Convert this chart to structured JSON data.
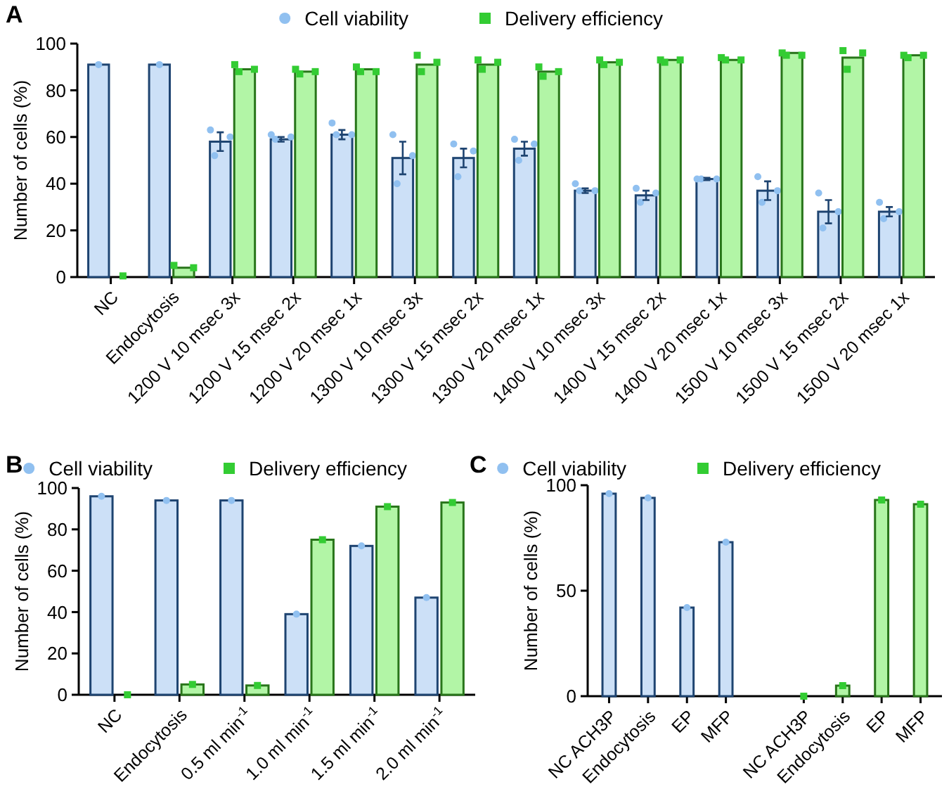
{
  "chart_data": [
    {
      "type": "bar",
      "title": "A",
      "ylabel": "Number of cells (%)",
      "legend": "top",
      "ylim": [
        0,
        100
      ],
      "yticks": [
        0,
        20,
        40,
        60,
        80,
        100
      ],
      "categories": [
        "NC",
        "Endocytosis",
        "1200 V 10 msec 3x",
        "1200 V 15 msec 2x",
        "1200 V 20 msec 1x",
        "1300 V 10 msec 3x",
        "1300 V 15 msec 2x",
        "1300 V 20 msec 1x",
        "1400 V 10 msec 3x",
        "1400 V 15 msec 2x",
        "1400 V 20 msec 1x",
        "1500 V 10 msec 3x",
        "1500 V 15 msec 2x",
        "1500 V 20 msec 1x"
      ],
      "series": [
        {
          "type": "bar",
          "color": "#cce0f7",
          "values": [
            91,
            91,
            58,
            59,
            61,
            51,
            51,
            55,
            37,
            35,
            42,
            37,
            28,
            28
          ],
          "errors": [
            null,
            null,
            4,
            1,
            2,
            7,
            4,
            3,
            1,
            2,
            0.5,
            4,
            5,
            2
          ]
        },
        {
          "type": "scatter",
          "name": "Cell viability",
          "marker": "circle",
          "color": "#90c0f0",
          "values": [
            91,
            91,
            63,
            61,
            66,
            61,
            57,
            59,
            40,
            38,
            42,
            43,
            36,
            32
          ]
        },
        {
          "type": "scatter",
          "marker": "circle",
          "color": "#90c0f0",
          "values": [
            null,
            null,
            60,
            60,
            61,
            52,
            54,
            57,
            37,
            36,
            42,
            37,
            28,
            28
          ]
        },
        {
          "type": "scatter",
          "marker": "circle",
          "color": "#90c0f0",
          "values": [
            null,
            null,
            52,
            59,
            61,
            40,
            43,
            50,
            37,
            32,
            42,
            32,
            21,
            25
          ]
        },
        {
          "type": "bar",
          "color": "#b2f5a6",
          "values": [
            null,
            4,
            89,
            88,
            89,
            91,
            91,
            88,
            92,
            93,
            93,
            96,
            94,
            95
          ]
        },
        {
          "type": "scatter",
          "name": "Delivery efficiency",
          "marker": "square",
          "color": "#33cc33",
          "values": [
            0.5,
            5,
            91,
            89,
            90,
            95,
            93,
            90,
            93,
            93,
            94,
            96,
            97,
            95
          ]
        },
        {
          "type": "scatter",
          "marker": "square",
          "color": "#33cc33",
          "values": [
            null,
            4,
            89,
            88,
            88,
            92,
            92,
            88,
            92,
            93,
            93,
            95,
            96,
            95
          ]
        },
        {
          "type": "scatter",
          "marker": "square",
          "color": "#33cc33",
          "values": [
            null,
            null,
            88,
            87,
            88,
            88,
            89,
            86,
            91,
            92,
            93,
            95,
            89,
            94
          ]
        }
      ]
    },
    {
      "type": "bar",
      "title": "B",
      "ylabel": "Number of cells (%)",
      "legend": "top",
      "ylim": [
        0,
        100
      ],
      "yticks": [
        0,
        20,
        40,
        60,
        80,
        100
      ],
      "categories": [
        "NC",
        "Endocytosis",
        "0.5 ml min$^{-1}$",
        "1.0 ml min$^{-1}$",
        "1.5 ml min$^{-1}$",
        "2.0 ml min$^{-1}$"
      ],
      "series": [
        {
          "type": "bar",
          "color": "#cce0f7",
          "values": [
            96,
            94,
            94,
            39,
            72,
            47
          ]
        },
        {
          "type": "scatter",
          "name": "Cell viability",
          "marker": "circle",
          "color": "#90c0f0",
          "values": [
            96,
            94,
            94,
            39,
            72,
            47
          ]
        },
        {
          "type": "bar",
          "color": "#b2f5a6",
          "values": [
            null,
            5,
            4.5,
            75,
            91,
            93
          ]
        },
        {
          "type": "scatter",
          "name": "Delivery efficiency",
          "marker": "square",
          "color": "#33cc33",
          "values": [
            0,
            5,
            4.5,
            75,
            91,
            93
          ]
        }
      ]
    },
    {
      "type": "bar",
      "title": "C",
      "ylabel": "Number of cells (%)",
      "legend": "top",
      "ylim": [
        0,
        100
      ],
      "yticks": [
        0,
        50,
        100
      ],
      "categories": [
        "NC ACH3P",
        "Endocytosis",
        "EP",
        "MFP",
        null,
        "NC ACH3P",
        "Endocytosis",
        "EP",
        "MFP"
      ],
      "series": [
        {
          "type": "bar",
          "color": "#cce0f7",
          "values": [
            96,
            94,
            42,
            73,
            null,
            null,
            null,
            null,
            null
          ]
        },
        {
          "type": "scatter",
          "name": "Cell viability",
          "marker": "circle",
          "color": "#90c0f0",
          "values": [
            96,
            94,
            42,
            73,
            null,
            null,
            null,
            null,
            null
          ]
        },
        {
          "type": "bar",
          "color": "#b2f5a6",
          "values": [
            null,
            null,
            null,
            null,
            null,
            null,
            5,
            93,
            91
          ]
        },
        {
          "type": "scatter",
          "name": "Delivery efficiency",
          "marker": "square",
          "color": "#33cc33",
          "values": [
            null,
            null,
            null,
            null,
            null,
            0,
            5,
            93,
            91
          ]
        }
      ]
    }
  ]
}
